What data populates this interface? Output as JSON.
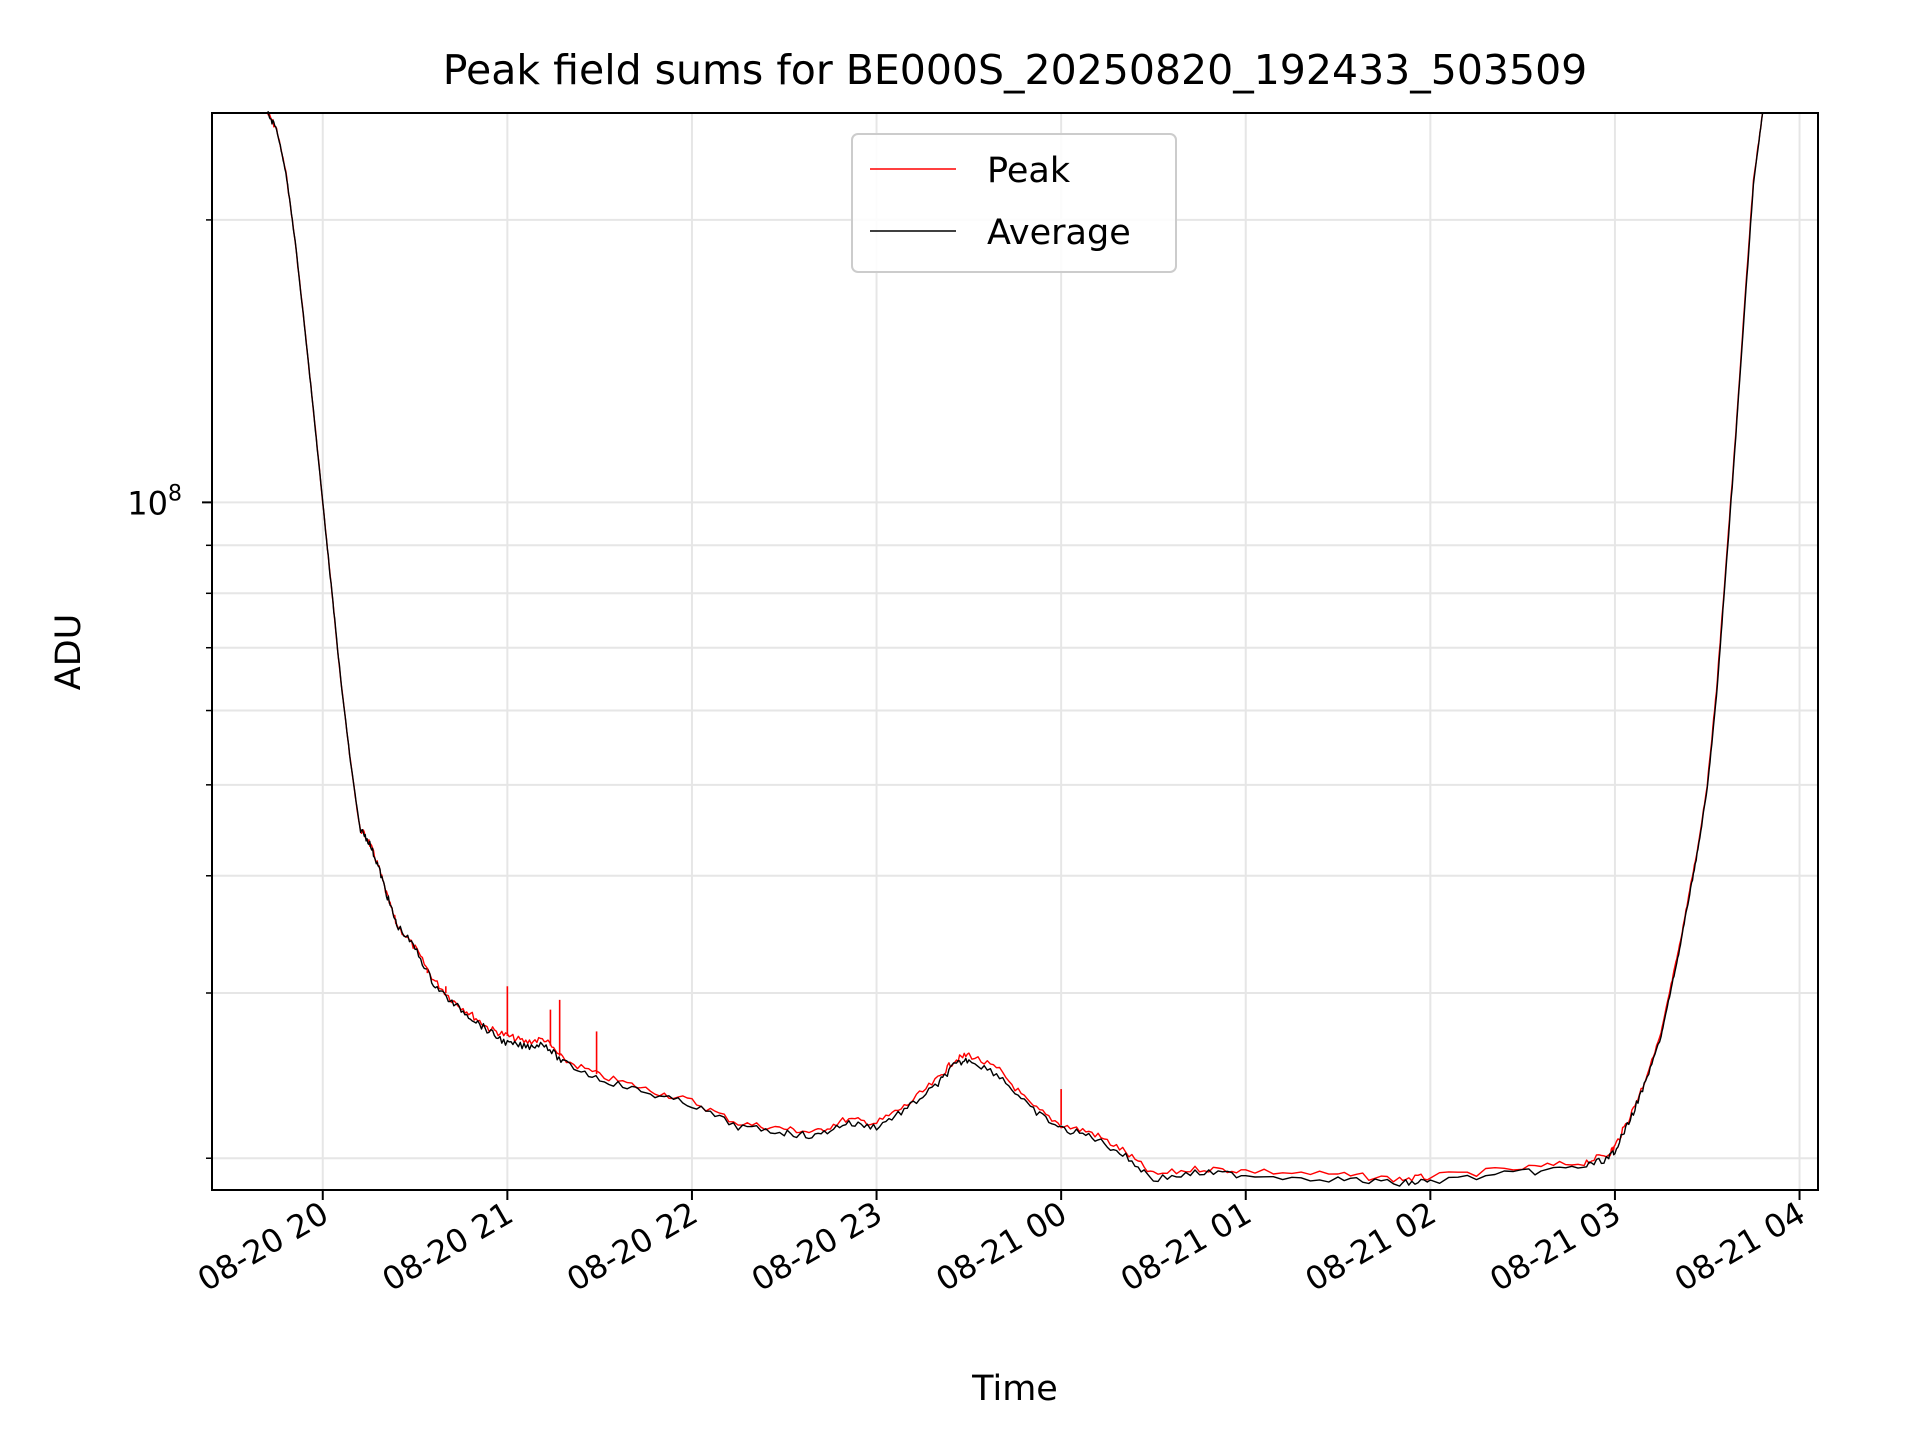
{
  "chart_data": {
    "type": "line",
    "title": "Peak field sums for BE000S_20250820_192433_503509",
    "xlabel": "Time",
    "ylabel": "ADU",
    "y_scale": "log",
    "ylim": [
      18500000,
      260000000
    ],
    "xlim": [
      "2025-08-20 19:24",
      "2025-08-21 04:06"
    ],
    "x_ticks": [
      "08-20 20",
      "08-20 21",
      "08-20 22",
      "08-20 23",
      "08-21 00",
      "08-21 01",
      "08-21 02",
      "08-21 03",
      "08-21 04"
    ],
    "x_tick_times": [
      "2025-08-20 20:00",
      "2025-08-20 21:00",
      "2025-08-20 22:00",
      "2025-08-20 23:00",
      "2025-08-21 00:00",
      "2025-08-21 01:00",
      "2025-08-21 02:00",
      "2025-08-21 03:00",
      "2025-08-21 04:00"
    ],
    "y_major_ticks": [
      {
        "value": 100000000,
        "base": "10",
        "exponent": "8"
      }
    ],
    "y_minor_ticks": [
      20000000,
      30000000,
      40000000,
      50000000,
      60000000,
      70000000,
      80000000,
      90000000,
      200000000
    ],
    "grid": true,
    "legend": {
      "placement": "upper-center"
    },
    "x_times": [
      "2025-08-20 19:42",
      "2025-08-20 19:45",
      "2025-08-20 19:48",
      "2025-08-20 19:51",
      "2025-08-20 19:54",
      "2025-08-20 19:57",
      "2025-08-20 20:00",
      "2025-08-20 20:03",
      "2025-08-20 20:06",
      "2025-08-20 20:09",
      "2025-08-20 20:12",
      "2025-08-20 20:15",
      "2025-08-20 20:18",
      "2025-08-20 20:21",
      "2025-08-20 20:24",
      "2025-08-20 20:30",
      "2025-08-20 20:36",
      "2025-08-20 20:42",
      "2025-08-20 20:48",
      "2025-08-20 20:54",
      "2025-08-20 21:00",
      "2025-08-20 21:06",
      "2025-08-20 21:12",
      "2025-08-20 21:18",
      "2025-08-20 21:30",
      "2025-08-20 21:45",
      "2025-08-20 22:00",
      "2025-08-20 22:15",
      "2025-08-20 22:30",
      "2025-08-20 22:40",
      "2025-08-20 22:50",
      "2025-08-20 23:00",
      "2025-08-20 23:10",
      "2025-08-20 23:20",
      "2025-08-20 23:25",
      "2025-08-20 23:30",
      "2025-08-20 23:40",
      "2025-08-20 23:50",
      "2025-08-21 00:00",
      "2025-08-21 00:10",
      "2025-08-21 00:20",
      "2025-08-21 00:30",
      "2025-08-21 00:45",
      "2025-08-21 01:00",
      "2025-08-21 01:30",
      "2025-08-21 01:50",
      "2025-08-21 02:00",
      "2025-08-21 02:30",
      "2025-08-21 02:50",
      "2025-08-21 02:58",
      "2025-08-21 03:00",
      "2025-08-21 03:05",
      "2025-08-21 03:10",
      "2025-08-21 03:15",
      "2025-08-21 03:18",
      "2025-08-21 03:21",
      "2025-08-21 03:24",
      "2025-08-21 03:27",
      "2025-08-21 03:30",
      "2025-08-21 03:33",
      "2025-08-21 03:36",
      "2025-08-21 03:39",
      "2025-08-21 03:42",
      "2025-08-21 03:45",
      "2025-08-21 03:48"
    ],
    "series": [
      {
        "name": "Peak",
        "color": "#ff0000",
        "values": [
          260000000,
          250000000,
          225000000,
          190000000,
          155000000,
          125000000,
          100000000,
          80000000,
          64000000,
          53000000,
          45000000,
          43500000,
          41000000,
          38000000,
          35500000,
          33500000,
          31000000,
          29500000,
          28500000,
          27500000,
          27000000,
          26600000,
          26800000,
          25500000,
          24500000,
          23700000,
          23000000,
          21800000,
          21500000,
          21300000,
          22000000,
          21800000,
          22800000,
          24300000,
          25400000,
          25800000,
          24800000,
          22800000,
          21700000,
          21300000,
          20400000,
          19200000,
          19500000,
          19400000,
          19200000,
          19000000,
          19100000,
          19500000,
          19800000,
          20200000,
          20600000,
          22200000,
          24300000,
          27200000,
          30300000,
          33700000,
          38100000,
          43000000,
          50000000,
          63000000,
          85000000,
          115000000,
          160000000,
          220000000,
          260000000
        ]
      },
      {
        "name": "Average",
        "color": "#000000",
        "values": [
          260000000,
          250000000,
          225000000,
          190000000,
          155000000,
          125000000,
          100000000,
          80000000,
          64000000,
          53000000,
          45000000,
          43500000,
          41000000,
          38000000,
          35500000,
          33500000,
          30700000,
          29300000,
          28300000,
          27300000,
          26500000,
          26300000,
          26500000,
          25300000,
          24300000,
          23500000,
          22800000,
          21600000,
          21300000,
          21100000,
          21800000,
          21600000,
          22600000,
          24000000,
          25100000,
          25500000,
          24500000,
          22600000,
          21500000,
          21100000,
          20200000,
          19000000,
          19300000,
          19200000,
          19000000,
          18800000,
          18900000,
          19300000,
          19600000,
          20000000,
          20400000,
          22000000,
          24100000,
          27000000,
          30000000,
          33400000,
          37800000,
          42700000,
          49500000,
          62000000,
          84000000,
          114000000,
          158000000,
          218000000,
          260000000
        ]
      }
    ],
    "spikes": [
      {
        "time": "2025-08-20 20:34",
        "value": 31500000
      },
      {
        "time": "2025-08-20 20:40",
        "value": 30500000
      },
      {
        "time": "2025-08-20 21:00",
        "value": 30500000
      },
      {
        "time": "2025-08-20 21:14",
        "value": 28800000
      },
      {
        "time": "2025-08-20 21:17",
        "value": 29500000
      },
      {
        "time": "2025-08-20 21:29",
        "value": 27300000
      },
      {
        "time": "2025-08-21 00:00",
        "value": 23700000
      }
    ]
  }
}
